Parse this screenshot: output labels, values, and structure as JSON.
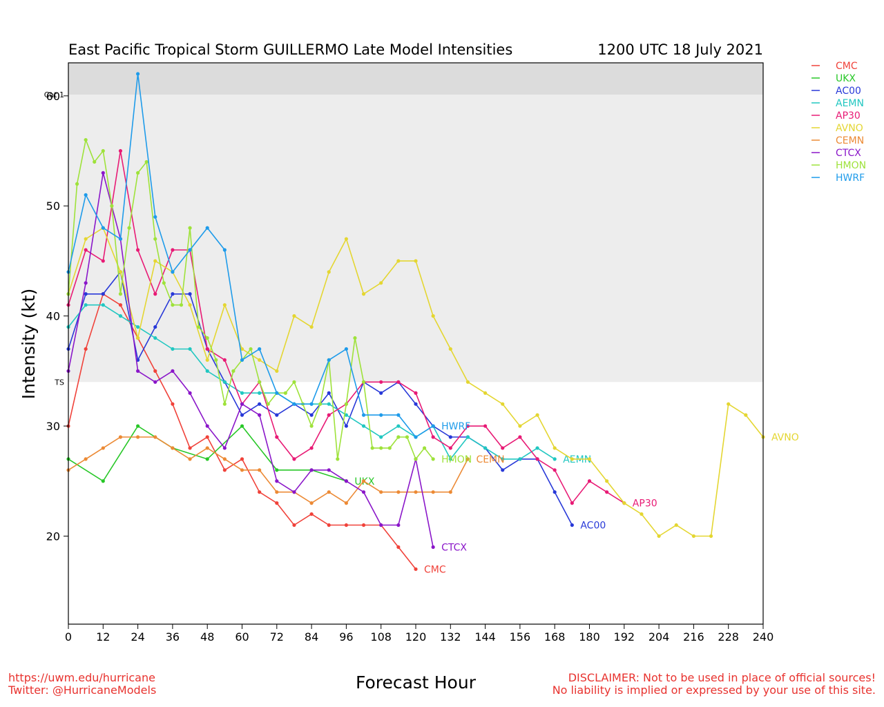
{
  "chart_data": {
    "type": "line",
    "title": "East Pacific Tropical Storm GUILLERMO Late Model Intensities",
    "subtitle": "1200 UTC 18 July 2021",
    "xlabel": "Forecast Hour",
    "ylabel": "Intensity (kt)",
    "xlim": [
      0,
      240
    ],
    "ylim": [
      12,
      63
    ],
    "xticks": [
      0,
      12,
      24,
      36,
      48,
      60,
      72,
      84,
      96,
      108,
      120,
      132,
      144,
      156,
      168,
      180,
      192,
      204,
      216,
      228,
      240
    ],
    "yticks": [
      20,
      30,
      40,
      50,
      60
    ],
    "bands": [
      {
        "from": 34,
        "to": 60.1,
        "color": "#ededed"
      },
      {
        "from": 60.1,
        "to": 63,
        "color": "#dcdcdc"
      }
    ],
    "thresholds": [
      {
        "value": 34,
        "label": "TS"
      },
      {
        "value": 60.1,
        "label": "Cat 1"
      }
    ],
    "legend_position": "right",
    "series": [
      {
        "name": "CMC",
        "color": "#f0423a",
        "label_pos": "end",
        "x": [
          0,
          6,
          12,
          18,
          24,
          30,
          36,
          42,
          48,
          54,
          60,
          66,
          72,
          78,
          84,
          90,
          96,
          102,
          108,
          114,
          120
        ],
        "y": [
          30,
          37,
          42,
          41,
          38,
          35,
          32,
          28,
          29,
          26,
          27,
          24,
          23,
          21,
          22,
          21,
          21,
          21,
          21,
          19,
          17
        ]
      },
      {
        "name": "UKX",
        "color": "#27c727",
        "label_pos": "end",
        "x": [
          0,
          12,
          24,
          36,
          48,
          60,
          72,
          84,
          96
        ],
        "y": [
          27,
          25,
          30,
          28,
          27,
          30,
          26,
          26,
          25
        ]
      },
      {
        "name": "AC00",
        "color": "#2839d8",
        "label_pos": "end",
        "x": [
          0,
          6,
          12,
          18,
          24,
          30,
          36,
          42,
          48,
          54,
          60,
          66,
          72,
          78,
          84,
          90,
          96,
          102,
          108,
          114,
          120,
          126,
          132,
          138,
          144,
          150,
          156,
          162,
          168,
          174
        ],
        "y": [
          37,
          42,
          42,
          44,
          36,
          39,
          42,
          42,
          37,
          34,
          31,
          32,
          31,
          32,
          31,
          33,
          30,
          34,
          33,
          34,
          32,
          30,
          29,
          29,
          28,
          26,
          27,
          27,
          24,
          21
        ]
      },
      {
        "name": "AEMN",
        "color": "#21c7c1",
        "label_pos": "end",
        "x": [
          0,
          6,
          12,
          18,
          24,
          30,
          36,
          42,
          48,
          54,
          60,
          66,
          72,
          78,
          84,
          90,
          96,
          102,
          108,
          114,
          120,
          126,
          132,
          138,
          144,
          150,
          156,
          162,
          168
        ],
        "y": [
          39,
          41,
          41,
          40,
          39,
          38,
          37,
          37,
          35,
          34,
          33,
          33,
          33,
          32,
          32,
          32,
          31,
          30,
          29,
          30,
          29,
          30,
          27,
          29,
          28,
          27,
          27,
          28,
          27
        ]
      },
      {
        "name": "AP30",
        "color": "#e81a75",
        "label_pos": "end",
        "x": [
          0,
          6,
          12,
          18,
          24,
          30,
          36,
          42,
          48,
          54,
          60,
          66,
          72,
          78,
          84,
          90,
          96,
          102,
          108,
          114,
          120,
          126,
          132,
          138,
          144,
          150,
          156,
          162,
          168,
          174,
          180,
          186,
          192
        ],
        "y": [
          41,
          46,
          45,
          55,
          46,
          42,
          46,
          46,
          37,
          36,
          32,
          34,
          29,
          27,
          28,
          31,
          32,
          34,
          34,
          34,
          33,
          29,
          28,
          30,
          30,
          28,
          29,
          27,
          26,
          23,
          25,
          24,
          23
        ]
      },
      {
        "name": "AVNO",
        "color": "#e4d631",
        "label_pos": "end",
        "x": [
          0,
          6,
          12,
          18,
          24,
          30,
          36,
          42,
          48,
          54,
          60,
          66,
          72,
          78,
          84,
          90,
          96,
          102,
          108,
          114,
          120,
          126,
          132,
          138,
          144,
          150,
          156,
          162,
          168,
          174,
          180,
          186,
          192,
          198,
          204,
          210,
          216,
          222,
          228,
          234,
          240
        ],
        "y": [
          42,
          47,
          48,
          44,
          38,
          45,
          44,
          41,
          36,
          41,
          37,
          36,
          35,
          40,
          39,
          44,
          47,
          42,
          43,
          45,
          45,
          40,
          37,
          34,
          33,
          32,
          30,
          31,
          28,
          27,
          27,
          25,
          23,
          22,
          20,
          21,
          20,
          20,
          32,
          31,
          29
        ]
      },
      {
        "name": "CEMN",
        "color": "#ec8a35",
        "label_pos": "end",
        "x": [
          0,
          6,
          12,
          18,
          24,
          30,
          36,
          42,
          48,
          54,
          60,
          66,
          72,
          78,
          84,
          90,
          96,
          102,
          108,
          114,
          120,
          126,
          132,
          138
        ],
        "y": [
          26,
          27,
          28,
          29,
          29,
          29,
          28,
          27,
          28,
          27,
          26,
          26,
          24,
          24,
          23,
          24,
          23,
          25,
          24,
          24,
          24,
          24,
          24,
          27
        ]
      },
      {
        "name": "CTCX",
        "color": "#8a16c9",
        "label_pos": "end",
        "x": [
          0,
          6,
          12,
          18,
          24,
          30,
          36,
          42,
          48,
          54,
          60,
          66,
          72,
          78,
          84,
          90,
          96,
          102,
          108,
          114,
          120,
          126
        ],
        "y": [
          35,
          43,
          53,
          47,
          35,
          34,
          35,
          33,
          30,
          28,
          32,
          31,
          25,
          24,
          26,
          26,
          25,
          24,
          21,
          21,
          27,
          19
        ]
      },
      {
        "name": "HMON",
        "color": "#9ee23a",
        "label_pos": "end",
        "x": [
          0,
          3,
          6,
          9,
          12,
          15,
          18,
          21,
          24,
          27,
          30,
          33,
          36,
          39,
          42,
          45,
          48,
          51,
          54,
          57,
          60,
          63,
          66,
          69,
          72,
          75,
          78,
          81,
          84,
          87,
          90,
          93,
          96,
          99,
          102,
          105,
          108,
          111,
          114,
          117,
          120,
          123,
          126
        ],
        "y": [
          42,
          52,
          56,
          54,
          55,
          50,
          42,
          48,
          53,
          54,
          47,
          43,
          41,
          41,
          48,
          39,
          38,
          36,
          32,
          35,
          36,
          37,
          34,
          32,
          33,
          33,
          34,
          32,
          30,
          32,
          36,
          27,
          32,
          38,
          34,
          28,
          28,
          28,
          29,
          29,
          27,
          28,
          27
        ]
      },
      {
        "name": "HWRF",
        "color": "#1e9bea",
        "label_pos": "end",
        "x": [
          0,
          6,
          12,
          18,
          24,
          30,
          36,
          42,
          48,
          54,
          60,
          66,
          72,
          78,
          84,
          90,
          96,
          102,
          108,
          114,
          120,
          126
        ],
        "y": [
          44,
          51,
          48,
          47,
          62,
          49,
          44,
          46,
          48,
          46,
          36,
          37,
          33,
          32,
          32,
          36,
          37,
          31,
          31,
          31,
          29,
          30
        ]
      }
    ]
  },
  "footer": {
    "left_line1": "https://uwm.edu/hurricane",
    "left_line2": "Twitter: @HurricaneModels",
    "right_line1": "DISCLAIMER: Not to be used in place of official sources!",
    "right_line2": "No liability is implied or expressed by your use of this site."
  }
}
